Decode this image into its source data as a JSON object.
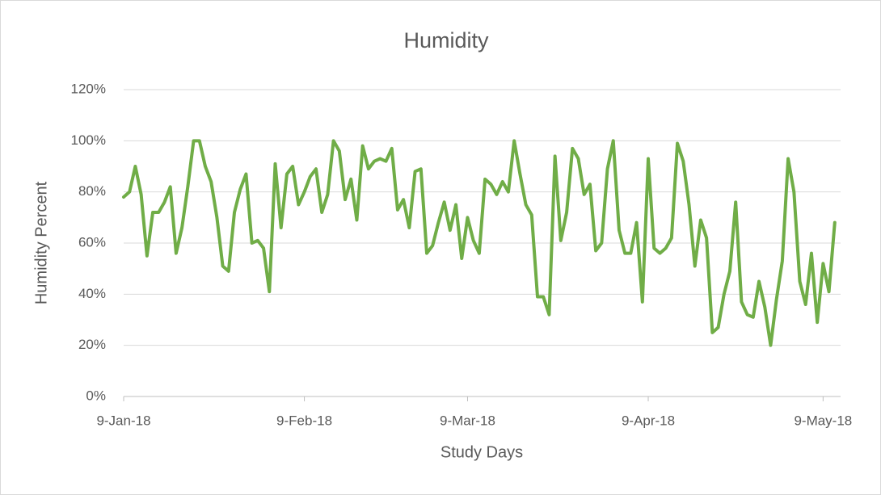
{
  "chart_data": {
    "type": "line",
    "title": "Humidity",
    "x_label": "Study Days",
    "y_label": "Humidity Percent",
    "x": [
      "2018-01-09",
      "2018-01-10",
      "2018-01-11",
      "2018-01-12",
      "2018-01-13",
      "2018-01-14",
      "2018-01-15",
      "2018-01-16",
      "2018-01-17",
      "2018-01-18",
      "2018-01-19",
      "2018-01-20",
      "2018-01-21",
      "2018-01-22",
      "2018-01-23",
      "2018-01-24",
      "2018-01-25",
      "2018-01-26",
      "2018-01-27",
      "2018-01-28",
      "2018-01-29",
      "2018-01-30",
      "2018-01-31",
      "2018-02-01",
      "2018-02-02",
      "2018-02-03",
      "2018-02-04",
      "2018-02-05",
      "2018-02-06",
      "2018-02-07",
      "2018-02-08",
      "2018-02-09",
      "2018-02-10",
      "2018-02-11",
      "2018-02-12",
      "2018-02-13",
      "2018-02-14",
      "2018-02-15",
      "2018-02-16",
      "2018-02-17",
      "2018-02-18",
      "2018-02-19",
      "2018-02-20",
      "2018-02-21",
      "2018-02-22",
      "2018-02-23",
      "2018-02-24",
      "2018-02-25",
      "2018-02-26",
      "2018-02-27",
      "2018-02-28",
      "2018-03-01",
      "2018-03-02",
      "2018-03-03",
      "2018-03-04",
      "2018-03-05",
      "2018-03-06",
      "2018-03-07",
      "2018-03-08",
      "2018-03-09",
      "2018-03-10",
      "2018-03-11",
      "2018-03-12",
      "2018-03-13",
      "2018-03-14",
      "2018-03-15",
      "2018-03-16",
      "2018-03-17",
      "2018-03-18",
      "2018-03-19",
      "2018-03-20",
      "2018-03-21",
      "2018-03-22",
      "2018-03-23",
      "2018-03-24",
      "2018-03-25",
      "2018-03-26",
      "2018-03-27",
      "2018-03-28",
      "2018-03-29",
      "2018-03-30",
      "2018-03-31",
      "2018-04-01",
      "2018-04-02",
      "2018-04-03",
      "2018-04-04",
      "2018-04-05",
      "2018-04-06",
      "2018-04-07",
      "2018-04-08",
      "2018-04-09",
      "2018-04-10",
      "2018-04-11",
      "2018-04-12",
      "2018-04-13",
      "2018-04-14",
      "2018-04-15",
      "2018-04-16",
      "2018-04-17",
      "2018-04-18",
      "2018-04-19",
      "2018-04-20",
      "2018-04-21",
      "2018-04-22",
      "2018-04-23",
      "2018-04-24",
      "2018-04-25",
      "2018-04-26",
      "2018-04-27",
      "2018-04-28",
      "2018-04-29",
      "2018-04-30",
      "2018-05-01",
      "2018-05-02",
      "2018-05-03",
      "2018-05-04",
      "2018-05-05",
      "2018-05-06",
      "2018-05-07",
      "2018-05-08",
      "2018-05-09",
      "2018-05-10",
      "2018-05-11"
    ],
    "series": [
      {
        "name": "Humidity",
        "color": "#70ad47",
        "values": [
          78,
          80,
          90,
          79,
          55,
          72,
          72,
          76,
          82,
          56,
          66,
          82,
          100,
          100,
          90,
          84,
          70,
          51,
          49,
          72,
          81,
          87,
          60,
          61,
          58,
          41,
          91,
          66,
          87,
          90,
          75,
          80,
          86,
          89,
          72,
          79,
          100,
          96,
          77,
          85,
          69,
          98,
          89,
          92,
          93,
          92,
          97,
          73,
          77,
          66,
          88,
          89,
          56,
          59,
          68,
          76,
          65,
          75,
          54,
          70,
          61,
          56,
          85,
          83,
          79,
          84,
          80,
          100,
          87,
          75,
          71,
          39,
          39,
          32,
          94,
          61,
          72,
          97,
          93,
          79,
          83,
          57,
          60,
          89,
          100,
          65,
          56,
          56,
          68,
          37,
          93,
          58,
          56,
          58,
          62,
          99,
          92,
          75,
          51,
          69,
          62,
          25,
          27,
          40,
          49,
          76,
          37,
          32,
          31,
          45,
          35,
          20,
          38,
          53,
          93,
          80,
          45,
          36,
          56,
          29,
          52,
          41,
          68
        ]
      }
    ],
    "xlim": [
      "2018-01-09",
      "2018-05-12"
    ],
    "xticks": [
      {
        "value": "2018-01-09",
        "label": "9-Jan-18"
      },
      {
        "value": "2018-02-09",
        "label": "9-Feb-18"
      },
      {
        "value": "2018-03-09",
        "label": "9-Mar-18"
      },
      {
        "value": "2018-04-09",
        "label": "9-Apr-18"
      },
      {
        "value": "2018-05-09",
        "label": "9-May-18"
      }
    ],
    "ylim": [
      0,
      120
    ],
    "yticks": [
      {
        "value": 0,
        "label": "0%"
      },
      {
        "value": 20,
        "label": "20%"
      },
      {
        "value": 40,
        "label": "40%"
      },
      {
        "value": 60,
        "label": "60%"
      },
      {
        "value": 80,
        "label": "80%"
      },
      {
        "value": 100,
        "label": "100%"
      },
      {
        "value": 120,
        "label": "120%"
      }
    ],
    "grid": true
  }
}
